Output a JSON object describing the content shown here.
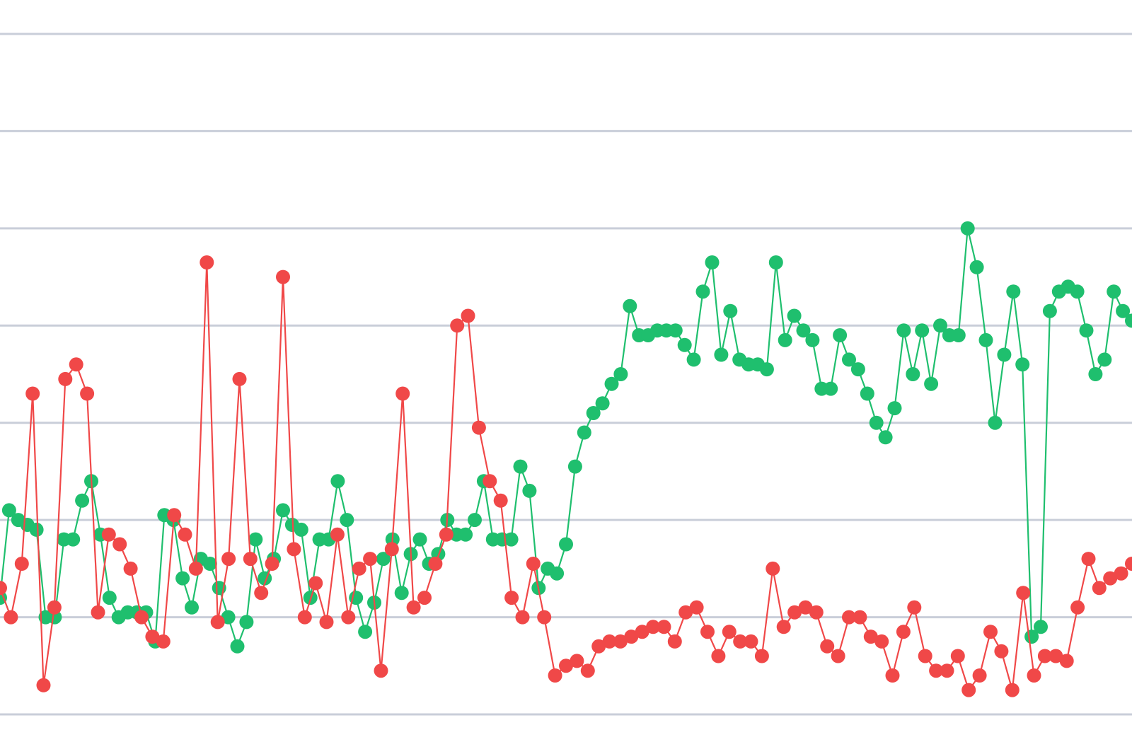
{
  "chart_data": {
    "type": "line",
    "title": "",
    "xlabel": "",
    "ylabel": "",
    "grid": true,
    "legend": "none",
    "ylim": [
      0,
      7
    ],
    "gridlines": [
      0,
      1,
      2,
      3,
      4,
      5,
      6,
      7
    ],
    "x_count": 172,
    "series": [
      {
        "color": "#1fbf6e",
        "values": [
          1.2,
          2.1,
          2.0,
          1.95,
          1.9,
          1.0,
          1.0,
          1.8,
          1.8,
          2.2,
          2.4,
          1.85,
          1.2,
          1.0,
          1.05,
          1.05,
          1.05,
          0.75,
          2.05,
          2.0,
          1.4,
          1.1,
          1.6,
          1.55,
          1.3,
          1.0,
          0.7,
          0.95,
          1.8,
          1.4,
          1.6,
          2.1,
          1.95,
          1.9,
          1.2,
          1.8,
          1.8,
          2.4,
          2.0,
          1.2,
          0.85,
          1.15,
          1.6,
          1.8,
          1.25,
          1.65,
          1.8,
          1.55,
          1.65,
          2.0,
          1.85,
          1.85,
          2.0,
          2.4,
          1.8,
          1.8,
          1.8,
          2.55,
          2.3,
          1.3,
          1.5,
          1.45,
          1.75,
          2.55,
          2.9,
          3.1,
          3.2,
          3.4,
          3.5,
          4.2,
          3.9,
          3.9,
          3.95,
          3.95,
          3.95,
          3.8,
          3.65,
          4.35,
          4.65,
          3.7,
          4.15,
          3.65,
          3.6,
          3.6,
          3.55,
          4.65,
          3.85,
          4.1,
          3.95,
          3.85,
          3.35,
          3.35,
          3.9,
          3.65,
          3.55,
          3.3,
          3.0,
          2.85,
          3.15,
          3.95,
          3.5,
          3.95,
          3.4,
          4.0,
          3.9,
          3.9,
          5.0,
          4.6,
          3.85,
          3.0,
          3.7,
          4.35,
          3.6,
          0.8,
          0.9,
          4.15,
          4.35,
          4.4,
          4.35,
          3.95,
          3.5,
          3.65,
          4.35,
          4.15,
          4.05
        ]
      },
      {
        "color": "#f04848",
        "values": [
          1.3,
          1.0,
          1.55,
          3.3,
          0.3,
          1.1,
          3.45,
          3.6,
          3.3,
          1.05,
          1.85,
          1.75,
          1.5,
          1.0,
          0.8,
          0.75,
          2.05,
          1.85,
          1.5,
          4.65,
          0.95,
          1.6,
          3.45,
          1.6,
          1.25,
          1.55,
          4.5,
          1.7,
          1.0,
          1.35,
          0.95,
          1.85,
          1.0,
          1.5,
          1.6,
          0.45,
          1.7,
          3.3,
          1.1,
          1.2,
          1.55,
          1.85,
          4.0,
          4.1,
          2.95,
          2.4,
          2.2,
          1.2,
          1.0,
          1.55,
          1.0,
          0.4,
          0.5,
          0.55,
          0.45,
          0.7,
          0.75,
          0.75,
          0.8,
          0.85,
          0.9,
          0.9,
          0.75,
          1.05,
          1.1,
          0.85,
          0.6,
          0.85,
          0.75,
          0.75,
          0.6,
          1.5,
          0.9,
          1.05,
          1.1,
          1.05,
          0.7,
          0.6,
          1.0,
          1.0,
          0.8,
          0.75,
          0.4,
          0.85,
          1.1,
          0.6,
          0.45,
          0.45,
          0.6,
          0.25,
          0.4,
          0.85,
          0.65,
          0.25,
          1.25,
          0.4,
          0.6,
          0.6,
          0.55,
          1.1,
          1.6,
          1.3,
          1.4,
          1.45,
          1.55
        ]
      }
    ]
  }
}
